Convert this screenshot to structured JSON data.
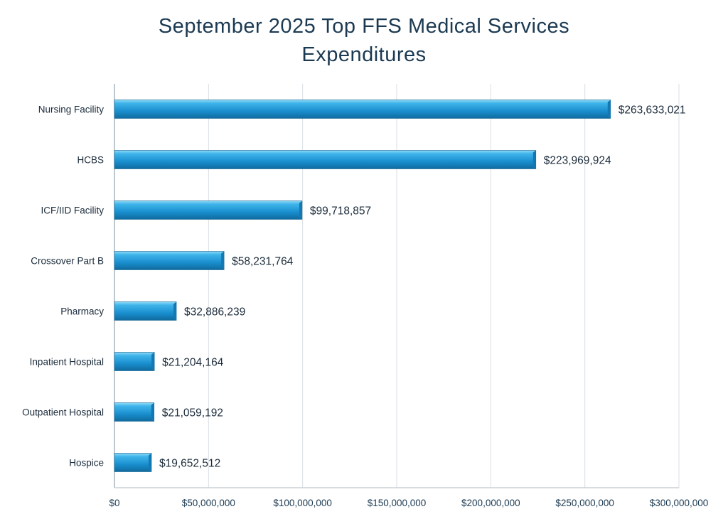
{
  "chart_data": {
    "type": "bar",
    "orientation": "horizontal",
    "title_lines": [
      "September 2025 Top FFS Medical Services",
      "Expenditures"
    ],
    "categories": [
      "Nursing Facility",
      "HCBS",
      "ICF/IID Facility",
      "Crossover Part B",
      "Pharmacy",
      "Inpatient Hospital",
      "Outpatient Hospital",
      "Hospice"
    ],
    "values": [
      263633021,
      223969924,
      99718857,
      58231764,
      32886239,
      21204164,
      21059192,
      19652512
    ],
    "data_labels": [
      "$263,633,021",
      "$223,969,924",
      "$99,718,857",
      "$58,231,764",
      "$32,886,239",
      "$21,204,164",
      "$21,059,192",
      "$19,652,512"
    ],
    "xlim": [
      0,
      300000000
    ],
    "x_ticks": [
      0,
      50000000,
      100000000,
      150000000,
      200000000,
      250000000,
      300000000
    ],
    "x_tick_labels": [
      "$0",
      "$50,000,000",
      "$100,000,000",
      "$150,000,000",
      "$200,000,000",
      "$250,000,000",
      "$300,000,000"
    ],
    "xlabel": "",
    "ylabel": "",
    "grid": true,
    "legend": "none",
    "colors": {
      "bar": "#1a8fcf",
      "bar_light": "#4fc1f0",
      "bar_dark": "#0f6a9e",
      "title": "#1b3a52",
      "grid": "#d9dee3"
    }
  }
}
